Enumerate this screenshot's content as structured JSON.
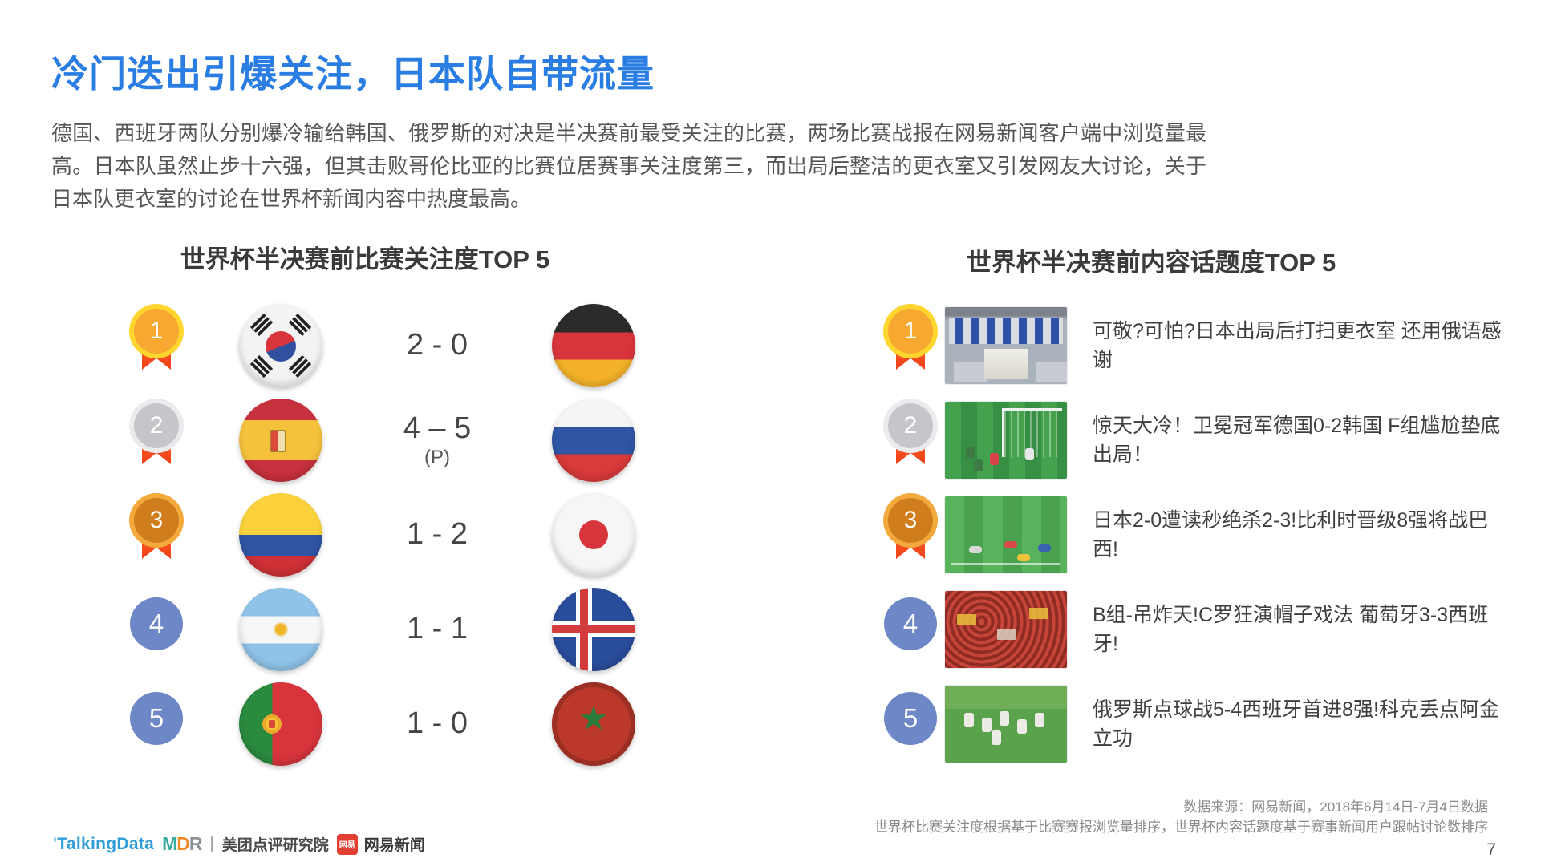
{
  "title": "冷门迭出引爆关注，日本队自带流量",
  "intro": "德国、西班牙两队分别爆冷输给韩国、俄罗斯的对决是半决赛前最受关注的比赛，两场比赛战报在网易新闻客户端中浏览量最高。日本队虽然止步十六强，但其击败哥伦比亚的比赛位居赛事关注度第三，而出局后整洁的更衣室又引发网友大讨论，关于日本队更衣室的讨论在世界杯新闻内容中热度最高。",
  "left_panel": {
    "heading": "世界杯半决赛前比赛关注度TOP 5",
    "rows": [
      {
        "rank": "1",
        "medal": "gold",
        "team_a": "south-korea",
        "score": "2 - 0",
        "note": "",
        "team_b": "germany"
      },
      {
        "rank": "2",
        "medal": "silver",
        "team_a": "spain",
        "score": "4 – 5",
        "note": "(P)",
        "team_b": "russia"
      },
      {
        "rank": "3",
        "medal": "bronze",
        "team_a": "colombia",
        "score": "1 - 2",
        "note": "",
        "team_b": "japan"
      },
      {
        "rank": "4",
        "medal": "plain",
        "team_a": "argentina",
        "score": "1 - 1",
        "note": "",
        "team_b": "iceland"
      },
      {
        "rank": "5",
        "medal": "plain",
        "team_a": "portugal",
        "score": "1 - 0",
        "note": "",
        "team_b": "morocco"
      }
    ]
  },
  "right_panel": {
    "heading": "世界杯半决赛前内容话题度TOP 5",
    "rows": [
      {
        "rank": "1",
        "medal": "gold",
        "thumbnail": "japan-locker-room",
        "headline": "可敬?可怕?日本出局后打扫更衣室 还用俄语感谢"
      },
      {
        "rank": "2",
        "medal": "silver",
        "thumbnail": "germany-korea-goal-scene",
        "headline": "惊天大冷！卫冕冠军德国0-2韩国 F组尴尬垫底出局！"
      },
      {
        "rank": "3",
        "medal": "bronze",
        "thumbnail": "japan-belgium-match",
        "headline": "日本2-0遭读秒绝杀2-3!比利时晋级8强将战巴西!"
      },
      {
        "rank": "4",
        "medal": "plain",
        "thumbnail": "portugal-fans-crowd",
        "headline": "B组-吊炸天!C罗狂演帽子戏法 葡萄牙3-3西班牙!"
      },
      {
        "rank": "5",
        "medal": "plain",
        "thumbnail": "russia-players-celebrate",
        "headline": "俄罗斯点球战5-4西班牙首进8强!科克丢点阿金立功"
      }
    ]
  },
  "footer": {
    "source_line1": "数据来源：网易新闻，2018年6月14日-7月4日数据",
    "source_line2": "世界杯比赛关注度根据基于比赛赛报浏览量排序，世界杯内容话题度基于赛事新闻用户跟帖讨论数排序",
    "page_number": "7",
    "logos": {
      "talkingdata": "TalkingData",
      "mdr_m": "M",
      "mdr_d": "D",
      "mdr_r": "R",
      "divider": "|",
      "meituan_label": "美团点评研究院",
      "netease_badge": "网易",
      "netease_label": "网易新闻"
    }
  },
  "colors": {
    "accent_blue": "#2a7de2",
    "medal_gold": "#f6a830",
    "medal_silver": "#c6c6ca",
    "medal_bronze": "#d07d1e",
    "rank_blue": "#6d87c7",
    "ribbon_red": "#ee3f16"
  }
}
